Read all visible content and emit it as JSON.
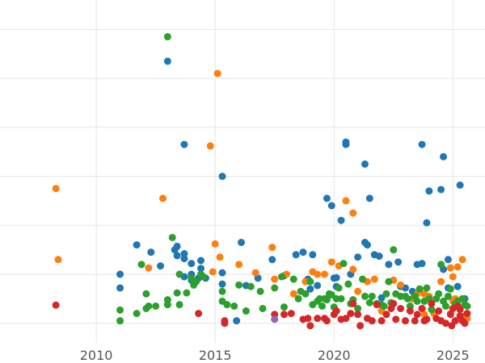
{
  "chart_data": {
    "type": "scatter",
    "title": "",
    "xlabel": "",
    "ylabel": "",
    "xlim": [
      2005.95,
      2026.35
    ],
    "ylim": [
      -0.4,
      6.6
    ],
    "xticks": [
      2010,
      2015,
      2020,
      2025
    ],
    "xtick_labels": [
      "2010",
      "2015",
      "2020",
      "2025"
    ],
    "grid": true,
    "legend": "none",
    "series": [
      {
        "color": "#1f77b4",
        "points": [
          [
            2011.0,
            1.0
          ],
          [
            2011.0,
            0.72
          ],
          [
            2011.7,
            1.6
          ],
          [
            2012.3,
            1.45
          ],
          [
            2012.7,
            1.17
          ],
          [
            2013.0,
            5.35
          ],
          [
            2013.3,
            1.5
          ],
          [
            2013.4,
            1.38
          ],
          [
            2013.4,
            1.57
          ],
          [
            2013.7,
            3.65
          ],
          [
            2013.7,
            1.42
          ],
          [
            2013.7,
            1.32
          ],
          [
            2013.7,
            0.95
          ],
          [
            2014.0,
            0.88
          ],
          [
            2014.0,
            1.22
          ],
          [
            2014.0,
            1.0
          ],
          [
            2014.4,
            1.12
          ],
          [
            2014.4,
            1.28
          ],
          [
            2014.6,
            0.92
          ],
          [
            2014.3,
            0.92
          ],
          [
            2015.3,
            3.0
          ],
          [
            2015.3,
            0.8
          ],
          [
            2015.3,
            1.03
          ],
          [
            2015.9,
            0.05
          ],
          [
            2016.1,
            1.65
          ],
          [
            2016.3,
            0.77
          ],
          [
            2016.8,
            0.92
          ],
          [
            2017.4,
            1.3
          ],
          [
            2017.9,
            0.97
          ],
          [
            2018.4,
            1.4
          ],
          [
            2018.7,
            1.45
          ],
          [
            2018.9,
            0.9
          ],
          [
            2019.1,
            1.4
          ],
          [
            2019.3,
            0.77
          ],
          [
            2019.0,
            0.7
          ],
          [
            2019.7,
            2.55
          ],
          [
            2019.9,
            2.4
          ],
          [
            2020.0,
            0.92
          ],
          [
            2020.1,
            0.93
          ],
          [
            2020.1,
            0.75
          ],
          [
            2020.3,
            2.1
          ],
          [
            2020.5,
            3.65
          ],
          [
            2020.5,
            3.7
          ],
          [
            2020.7,
            1.0
          ],
          [
            2021.0,
            1.35
          ],
          [
            2021.3,
            3.25
          ],
          [
            2021.3,
            1.65
          ],
          [
            2021.4,
            1.6
          ],
          [
            2021.5,
            2.55
          ],
          [
            2021.7,
            1.4
          ],
          [
            2021.9,
            1.37
          ],
          [
            2022.0,
            0.52
          ],
          [
            2022.3,
            1.2
          ],
          [
            2022.7,
            1.25
          ],
          [
            2022.8,
            0.75
          ],
          [
            2023.0,
            0.72
          ],
          [
            2023.3,
            0.65
          ],
          [
            2023.5,
            1.2
          ],
          [
            2023.7,
            1.22
          ],
          [
            2023.7,
            3.65
          ],
          [
            2023.9,
            2.05
          ],
          [
            2024.0,
            2.7
          ],
          [
            2024.5,
            2.73
          ],
          [
            2024.6,
            1.1
          ],
          [
            2024.6,
            3.4
          ],
          [
            2024.8,
            1.3
          ],
          [
            2024.8,
            0.72
          ],
          [
            2025.2,
            0.75
          ],
          [
            2025.3,
            2.82
          ],
          [
            2025.5,
            0.5
          ]
        ]
      },
      {
        "color": "#ff7f0e",
        "points": [
          [
            2008.3,
            2.75
          ],
          [
            2008.4,
            1.3
          ],
          [
            2012.2,
            1.13
          ],
          [
            2012.8,
            2.55
          ],
          [
            2014.8,
            3.62
          ],
          [
            2015.1,
            5.1
          ],
          [
            2015.0,
            1.62
          ],
          [
            2015.2,
            1.35
          ],
          [
            2014.9,
            1.05
          ],
          [
            2016.0,
            1.2
          ],
          [
            2016.7,
            1.03
          ],
          [
            2017.4,
            1.55
          ],
          [
            2017.5,
            0.9
          ],
          [
            2018.0,
            1.0
          ],
          [
            2018.3,
            0.6
          ],
          [
            2018.8,
            0.85
          ],
          [
            2019.1,
            1.05
          ],
          [
            2019.3,
            1.0
          ],
          [
            2019.9,
            1.25
          ],
          [
            2020.5,
            2.5
          ],
          [
            2020.8,
            2.25
          ],
          [
            2020.8,
            1.1
          ],
          [
            2021.0,
            0.65
          ],
          [
            2021.7,
            0.9
          ],
          [
            2022.5,
            0.88
          ],
          [
            2022.8,
            0.78
          ],
          [
            2023.3,
            0.5
          ],
          [
            2023.5,
            0.6
          ],
          [
            2023.8,
            0.6
          ],
          [
            2024.0,
            0.55
          ],
          [
            2024.2,
            0.2
          ],
          [
            2024.5,
            0.85
          ],
          [
            2024.8,
            0.55
          ],
          [
            2024.9,
            0.2
          ],
          [
            2025.0,
            0.45
          ],
          [
            2025.1,
            0.5
          ],
          [
            2025.2,
            1.15
          ],
          [
            2025.3,
            0.3
          ],
          [
            2025.4,
            1.3
          ],
          [
            2025.5,
            0.15
          ],
          [
            2025.6,
            0.1
          ],
          [
            2024.9,
            1.13
          ],
          [
            2025.0,
            0.95
          ],
          [
            2023.8,
            0.18
          ],
          [
            2022.0,
            0.25
          ],
          [
            2020.2,
            1.17
          ],
          [
            2019.6,
            1.0
          ],
          [
            2021.4,
            0.85
          ]
        ]
      },
      {
        "color": "#2ca02c",
        "points": [
          [
            2011.0,
            0.05
          ],
          [
            2011.0,
            0.27
          ],
          [
            2011.7,
            0.2
          ],
          [
            2011.9,
            1.2
          ],
          [
            2012.1,
            0.3
          ],
          [
            2012.2,
            0.35
          ],
          [
            2012.1,
            0.6
          ],
          [
            2012.5,
            0.35
          ],
          [
            2013.0,
            0.38
          ],
          [
            2013.0,
            0.48
          ],
          [
            2013.0,
            5.85
          ],
          [
            2013.2,
            1.75
          ],
          [
            2013.4,
            0.62
          ],
          [
            2013.5,
            0.38
          ],
          [
            2013.5,
            1.0
          ],
          [
            2013.8,
            0.62
          ],
          [
            2014.0,
            0.92
          ],
          [
            2014.1,
            0.78
          ],
          [
            2014.2,
            0.85
          ],
          [
            2014.4,
            1.0
          ],
          [
            2014.5,
            0.95
          ],
          [
            2015.3,
            0.45
          ],
          [
            2015.3,
            0.65
          ],
          [
            2015.5,
            0.38
          ],
          [
            2015.8,
            0.35
          ],
          [
            2016.0,
            0.78
          ],
          [
            2016.3,
            0.25
          ],
          [
            2016.5,
            0.75
          ],
          [
            2016.9,
            0.65
          ],
          [
            2017.0,
            0.3
          ],
          [
            2017.5,
            0.72
          ],
          [
            2017.8,
            0.95
          ],
          [
            2017.9,
            0.33
          ],
          [
            2018.3,
            0.9
          ],
          [
            2018.5,
            0.5
          ],
          [
            2018.6,
            0.65
          ],
          [
            2018.8,
            0.6
          ],
          [
            2019.0,
            0.85
          ],
          [
            2019.1,
            0.38
          ],
          [
            2019.3,
            0.45
          ],
          [
            2019.4,
            0.5
          ],
          [
            2019.5,
            0.35
          ],
          [
            2019.6,
            0.5
          ],
          [
            2019.7,
            0.48
          ],
          [
            2019.8,
            0.6
          ],
          [
            2019.9,
            0.58
          ],
          [
            2020.0,
            0.33
          ],
          [
            2020.1,
            0.5
          ],
          [
            2020.2,
            0.72
          ],
          [
            2020.3,
            0.5
          ],
          [
            2020.4,
            1.22
          ],
          [
            2020.6,
            0.8
          ],
          [
            2020.7,
            0.4
          ],
          [
            2020.8,
            0.48
          ],
          [
            2021.0,
            0.3
          ],
          [
            2021.2,
            0.9
          ],
          [
            2021.3,
            0.55
          ],
          [
            2021.5,
            0.42
          ],
          [
            2021.6,
            0.55
          ],
          [
            2021.8,
            0.4
          ],
          [
            2022.0,
            0.38
          ],
          [
            2022.1,
            0.35
          ],
          [
            2022.2,
            0.6
          ],
          [
            2022.3,
            0.85
          ],
          [
            2022.4,
            0.42
          ],
          [
            2022.5,
            1.5
          ],
          [
            2022.6,
            0.6
          ],
          [
            2022.8,
            0.55
          ],
          [
            2023.0,
            0.55
          ],
          [
            2023.1,
            0.5
          ],
          [
            2023.2,
            0.35
          ],
          [
            2023.4,
            0.55
          ],
          [
            2023.5,
            0.45
          ],
          [
            2023.6,
            0.7
          ],
          [
            2023.7,
            0.3
          ],
          [
            2023.8,
            0.45
          ],
          [
            2023.9,
            0.72
          ],
          [
            2024.0,
            0.5
          ],
          [
            2024.1,
            0.28
          ],
          [
            2024.3,
            0.5
          ],
          [
            2024.4,
            0.6
          ],
          [
            2024.5,
            1.2
          ],
          [
            2024.6,
            0.45
          ],
          [
            2024.7,
            0.35
          ],
          [
            2024.8,
            0.55
          ],
          [
            2024.9,
            0.7
          ],
          [
            2025.0,
            0.3
          ],
          [
            2025.1,
            0.4
          ],
          [
            2025.2,
            0.45
          ],
          [
            2025.4,
            0.5
          ],
          [
            2025.5,
            0.38
          ],
          [
            2025.6,
            0.35
          ]
        ]
      },
      {
        "color": "#d62728",
        "points": [
          [
            2008.3,
            0.37
          ],
          [
            2014.3,
            0.2
          ],
          [
            2015.4,
            0.0
          ],
          [
            2015.4,
            0.05
          ],
          [
            2017.5,
            0.18
          ],
          [
            2017.9,
            0.18
          ],
          [
            2018.2,
            0.2
          ],
          [
            2018.7,
            0.08
          ],
          [
            2018.9,
            0.1
          ],
          [
            2019.0,
            -0.05
          ],
          [
            2019.3,
            0.1
          ],
          [
            2019.6,
            0.1
          ],
          [
            2019.7,
            0.05
          ],
          [
            2020.0,
            0.18
          ],
          [
            2020.1,
            0.25
          ],
          [
            2020.3,
            0.08
          ],
          [
            2020.5,
            0.1
          ],
          [
            2020.7,
            0.2
          ],
          [
            2020.8,
            0.4
          ],
          [
            2021.0,
            0.18
          ],
          [
            2021.1,
            -0.05
          ],
          [
            2021.4,
            0.1
          ],
          [
            2021.6,
            0.05
          ],
          [
            2021.8,
            0.38
          ],
          [
            2022.0,
            0.05
          ],
          [
            2022.2,
            0.18
          ],
          [
            2022.4,
            0.3
          ],
          [
            2022.5,
            0.4
          ],
          [
            2022.6,
            0.08
          ],
          [
            2022.8,
            0.3
          ],
          [
            2023.0,
            0.05
          ],
          [
            2023.2,
            0.25
          ],
          [
            2023.4,
            0.05
          ],
          [
            2023.5,
            0.18
          ],
          [
            2023.7,
            0.3
          ],
          [
            2023.9,
            0.08
          ],
          [
            2024.1,
            0.4
          ],
          [
            2024.3,
            0.1
          ],
          [
            2024.5,
            0.05
          ],
          [
            2024.7,
            0.0
          ],
          [
            2024.9,
            0.18
          ],
          [
            2025.0,
            0.3
          ],
          [
            2025.1,
            0.05
          ],
          [
            2025.2,
            0.35
          ],
          [
            2025.3,
            0.15
          ],
          [
            2025.4,
            0.05
          ],
          [
            2025.5,
            0.0
          ],
          [
            2025.6,
            0.2
          ],
          [
            2024.4,
            0.25
          ],
          [
            2023.8,
            0.05
          ],
          [
            2025.3,
            0.28
          ],
          [
            2024.95,
            -0.05
          ]
        ]
      },
      {
        "color": "#9467bd",
        "points": [
          [
            2017.5,
            0.08
          ]
        ]
      }
    ]
  }
}
